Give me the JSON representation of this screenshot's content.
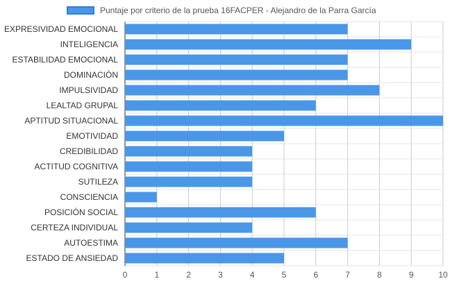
{
  "chart_data": {
    "type": "bar",
    "orientation": "horizontal",
    "categories": [
      "EXPRESIVIDAD EMOCIONAL",
      "INTELIGENCIA",
      "ESTABILIDAD EMOCIONAL",
      "DOMINACIÓN",
      "IMPULSIVIDAD",
      "LEALTAD GRUPAL",
      "APTITUD SITUACIONAL",
      "EMOTIVIDAD",
      "CREDIBILIDAD",
      "ACTITUD COGNITIVA",
      "SUTILEZA",
      "CONSCIENCIA",
      "POSICIÓN SOCIAL",
      "CERTEZA INDIVIDUAL",
      "AUTOESTIMA",
      "ESTADO DE ANSIEDAD"
    ],
    "series": [
      {
        "name": "Puntaje por criterio de la prueba 16FACPER - Alejandro de la Parra García",
        "values": [
          7,
          9,
          7,
          7,
          8,
          6,
          10,
          5,
          4,
          4,
          4,
          1,
          6,
          4,
          7,
          5
        ],
        "color": "#4a97e8"
      }
    ],
    "xlim": [
      0,
      10
    ],
    "xticks": [
      "0",
      "1",
      "2",
      "3",
      "4",
      "5",
      "6",
      "7",
      "8",
      "9",
      "10"
    ],
    "grid": true,
    "legend": "top-center"
  }
}
